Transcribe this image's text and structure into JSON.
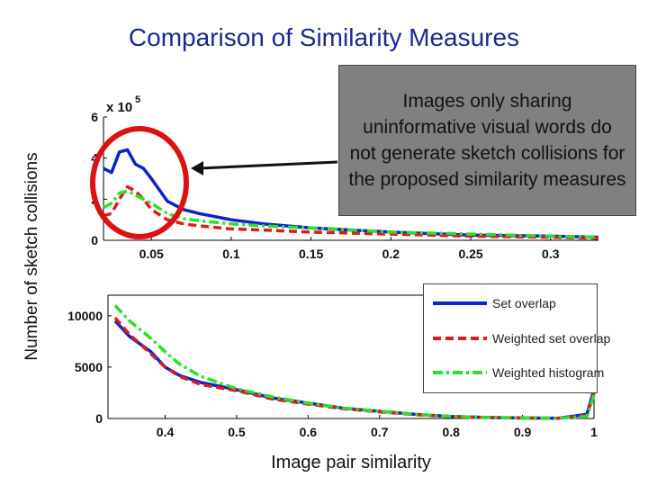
{
  "slide": {
    "title": "Comparison of Similarity Measures",
    "callout": "Images only sharing uninformative visual words do not generate sketch collisions for the proposed similarity measures"
  },
  "colors": {
    "title": "#1a2a8c",
    "set_overlap": "#0a22cc",
    "weighted_set_overlap": "#e01a1a",
    "weighted_histogram": "#2be02b",
    "circle": "#dd1111"
  },
  "chart_data": [
    {
      "type": "line",
      "name": "upper-panel",
      "ylabel": "Number of sketch collisions",
      "y_exponent_label": "x 10",
      "y_exponent": "5",
      "xlim": [
        0.02,
        0.33
      ],
      "ylim": [
        0,
        6
      ],
      "xticks": [
        0.05,
        0.1,
        0.15,
        0.2,
        0.25,
        0.3
      ],
      "xtick_labels": [
        "0.05",
        "0.1",
        "0.15",
        "0.2",
        "0.25",
        "0.3"
      ],
      "yticks": [
        0,
        2,
        4,
        6
      ],
      "ytick_labels": [
        "0",
        "2",
        "4",
        "6"
      ],
      "series": [
        {
          "name": "Set overlap",
          "x": [
            0.02,
            0.025,
            0.03,
            0.035,
            0.04,
            0.045,
            0.05,
            0.06,
            0.07,
            0.08,
            0.1,
            0.12,
            0.15,
            0.2,
            0.25,
            0.3,
            0.33
          ],
          "y": [
            3.5,
            3.3,
            4.3,
            4.4,
            3.7,
            3.5,
            3.0,
            1.9,
            1.5,
            1.3,
            1.0,
            0.8,
            0.6,
            0.4,
            0.25,
            0.2,
            0.15
          ]
        },
        {
          "name": "Weighted set overlap",
          "x": [
            0.02,
            0.025,
            0.03,
            0.035,
            0.04,
            0.045,
            0.05,
            0.06,
            0.07,
            0.08,
            0.1,
            0.12,
            0.15,
            0.2,
            0.25,
            0.3,
            0.33
          ],
          "y": [
            1.2,
            1.3,
            2.0,
            2.6,
            2.4,
            2.0,
            1.5,
            1.0,
            0.8,
            0.7,
            0.55,
            0.5,
            0.4,
            0.3,
            0.2,
            0.15,
            0.1
          ]
        },
        {
          "name": "Weighted histogram",
          "x": [
            0.02,
            0.025,
            0.03,
            0.035,
            0.04,
            0.045,
            0.05,
            0.06,
            0.07,
            0.08,
            0.1,
            0.12,
            0.15,
            0.2,
            0.25,
            0.3,
            0.33
          ],
          "y": [
            1.6,
            1.8,
            2.3,
            2.4,
            2.2,
            2.0,
            1.8,
            1.3,
            1.05,
            0.95,
            0.8,
            0.7,
            0.6,
            0.4,
            0.3,
            0.2,
            0.15
          ]
        }
      ]
    },
    {
      "type": "line",
      "name": "lower-panel",
      "xlabel": "Image pair similarity",
      "xlim": [
        0.32,
        1.0
      ],
      "ylim": [
        0,
        12000
      ],
      "xticks": [
        0.4,
        0.5,
        0.6,
        0.7,
        0.8,
        0.9,
        1.0
      ],
      "xtick_labels": [
        "0.4",
        "0.5",
        "0.6",
        "0.7",
        "0.8",
        "0.9",
        "1"
      ],
      "yticks": [
        0,
        5000,
        10000
      ],
      "ytick_labels": [
        "0",
        "5000",
        "10000"
      ],
      "legend": [
        "Set overlap",
        "Weighted set overlap",
        "Weighted histogram"
      ],
      "series": [
        {
          "name": "Set overlap",
          "x": [
            0.33,
            0.35,
            0.38,
            0.4,
            0.42,
            0.45,
            0.5,
            0.55,
            0.6,
            0.65,
            0.7,
            0.75,
            0.8,
            0.85,
            0.9,
            0.95,
            0.99,
            1.0
          ],
          "y": [
            9500,
            8000,
            6500,
            5000,
            4200,
            3500,
            2800,
            2000,
            1500,
            1000,
            700,
            400,
            200,
            100,
            50,
            30,
            400,
            2800
          ]
        },
        {
          "name": "Weighted set overlap",
          "x": [
            0.33,
            0.35,
            0.38,
            0.4,
            0.42,
            0.45,
            0.5,
            0.55,
            0.6,
            0.65,
            0.7,
            0.75,
            0.8,
            0.85,
            0.9,
            0.95,
            0.99,
            1.0
          ],
          "y": [
            9800,
            8200,
            6300,
            5000,
            4100,
            3300,
            2700,
            1900,
            1400,
            950,
            650,
            380,
            180,
            90,
            40,
            20,
            300,
            2500
          ]
        },
        {
          "name": "Weighted histogram",
          "x": [
            0.33,
            0.35,
            0.38,
            0.4,
            0.42,
            0.45,
            0.5,
            0.55,
            0.6,
            0.65,
            0.7,
            0.75,
            0.8,
            0.85,
            0.9,
            0.95,
            0.99,
            1.0
          ],
          "y": [
            11000,
            9500,
            7800,
            6500,
            5300,
            4100,
            2900,
            2100,
            1500,
            1000,
            700,
            400,
            200,
            100,
            50,
            30,
            200,
            2300
          ]
        }
      ]
    }
  ]
}
